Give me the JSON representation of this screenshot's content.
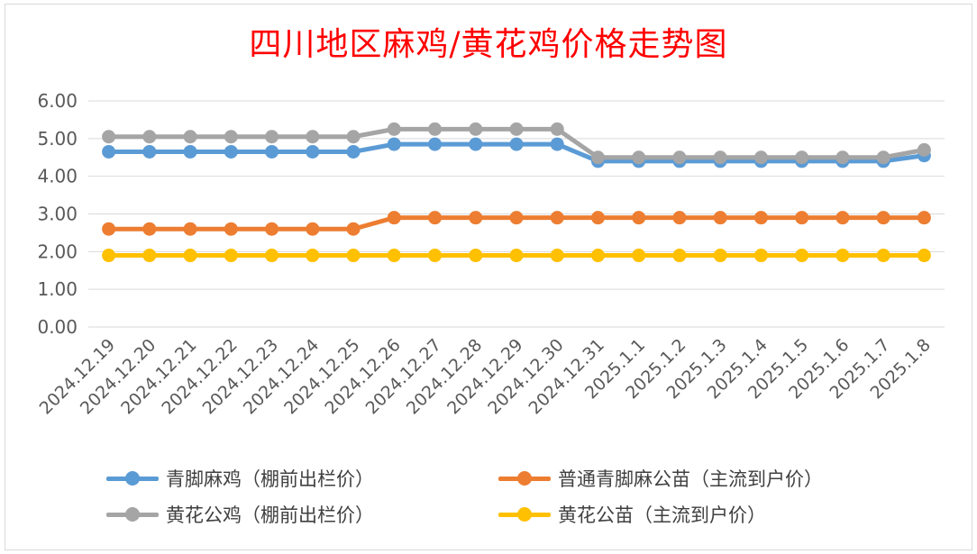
{
  "chart_data": {
    "type": "line",
    "title": "四川地区麻鸡/黄花鸡价格走势图",
    "categories": [
      "2024.12.19",
      "2024.12.20",
      "2024.12.21",
      "2024.12.22",
      "2024.12.23",
      "2024.12.24",
      "2024.12.25",
      "2024.12.26",
      "2024.12.27",
      "2024.12.28",
      "2024.12.29",
      "2024.12.30",
      "2024.12.31",
      "2025.1.1",
      "2025.1.2",
      "2025.1.3",
      "2025.1.4",
      "2025.1.5",
      "2025.1.6",
      "2025.1.7",
      "2025.1.8"
    ],
    "ylim": [
      0,
      6
    ],
    "yticks": [
      "0.00",
      "1.00",
      "2.00",
      "3.00",
      "4.00",
      "5.00",
      "6.00"
    ],
    "grid": true,
    "legend_position": "bottom",
    "series": [
      {
        "name": "青脚麻鸡（棚前出栏价）",
        "color": "#5b9bd5",
        "values": [
          4.65,
          4.65,
          4.65,
          4.65,
          4.65,
          4.65,
          4.65,
          4.85,
          4.85,
          4.85,
          4.85,
          4.85,
          4.4,
          4.4,
          4.4,
          4.4,
          4.4,
          4.4,
          4.4,
          4.4,
          4.55
        ]
      },
      {
        "name": "普通青脚麻公苗（主流到户价）",
        "color": "#ed7d31",
        "values": [
          2.6,
          2.6,
          2.6,
          2.6,
          2.6,
          2.6,
          2.6,
          2.9,
          2.9,
          2.9,
          2.9,
          2.9,
          2.9,
          2.9,
          2.9,
          2.9,
          2.9,
          2.9,
          2.9,
          2.9,
          2.9
        ]
      },
      {
        "name": "黄花公鸡（棚前出栏价）",
        "color": "#a5a5a5",
        "values": [
          5.05,
          5.05,
          5.05,
          5.05,
          5.05,
          5.05,
          5.05,
          5.25,
          5.25,
          5.25,
          5.25,
          5.25,
          4.5,
          4.5,
          4.5,
          4.5,
          4.5,
          4.5,
          4.5,
          4.5,
          4.7
        ]
      },
      {
        "name": "黄花公苗（主流到户价）",
        "color": "#ffc000",
        "values": [
          1.9,
          1.9,
          1.9,
          1.9,
          1.9,
          1.9,
          1.9,
          1.9,
          1.9,
          1.9,
          1.9,
          1.9,
          1.9,
          1.9,
          1.9,
          1.9,
          1.9,
          1.9,
          1.9,
          1.9,
          1.9
        ]
      }
    ]
  }
}
